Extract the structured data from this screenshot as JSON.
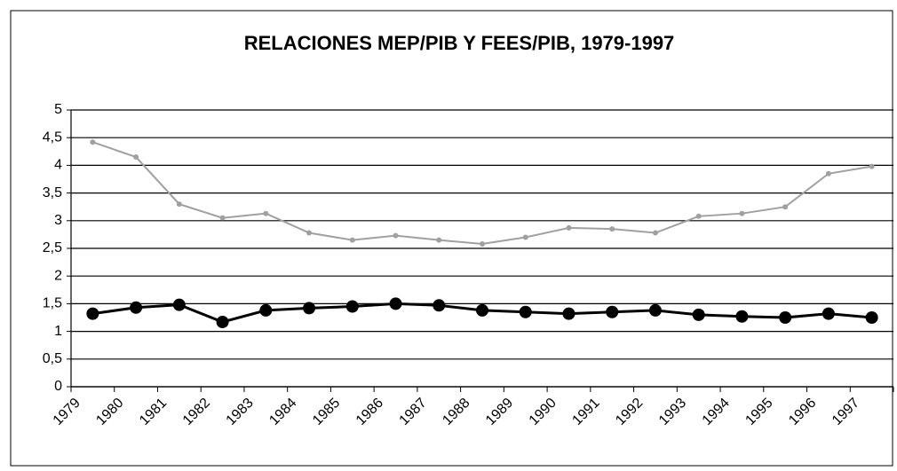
{
  "chart_data": {
    "type": "line",
    "title": "RELACIONES MEP/PIB Y FEES/PIB, 1979-1997",
    "categories": [
      "1979",
      "1980",
      "1981",
      "1982",
      "1983",
      "1984",
      "1985",
      "1986",
      "1987",
      "1988",
      "1989",
      "1990",
      "1991",
      "1992",
      "1993",
      "1994",
      "1995",
      "1996",
      "1997"
    ],
    "series": [
      {
        "color": "#a0a0a0",
        "marker_size": 3,
        "line_width": 2,
        "values": [
          4.42,
          4.15,
          3.3,
          3.05,
          3.13,
          2.78,
          2.65,
          2.73,
          2.65,
          2.58,
          2.7,
          2.87,
          2.85,
          2.78,
          3.08,
          3.13,
          3.25,
          3.85,
          3.98
        ]
      },
      {
        "color": "#000000",
        "marker_size": 7,
        "line_width": 3,
        "values": [
          1.32,
          1.43,
          1.48,
          1.17,
          1.38,
          1.42,
          1.45,
          1.5,
          1.47,
          1.38,
          1.35,
          1.32,
          1.35,
          1.38,
          1.3,
          1.27,
          1.25,
          1.32,
          1.25
        ]
      }
    ],
    "ylim": [
      0,
      5
    ],
    "yticks": [
      0,
      {
        "value": 0.5,
        "label": "0,5"
      },
      1,
      {
        "value": 1.5,
        "label": "1,5"
      },
      2,
      {
        "value": 2.5,
        "label": "2,5"
      },
      3,
      {
        "value": 3.5,
        "label": "3,5"
      },
      4,
      {
        "value": 4.5,
        "label": "4,5"
      },
      5
    ],
    "grid": true
  }
}
